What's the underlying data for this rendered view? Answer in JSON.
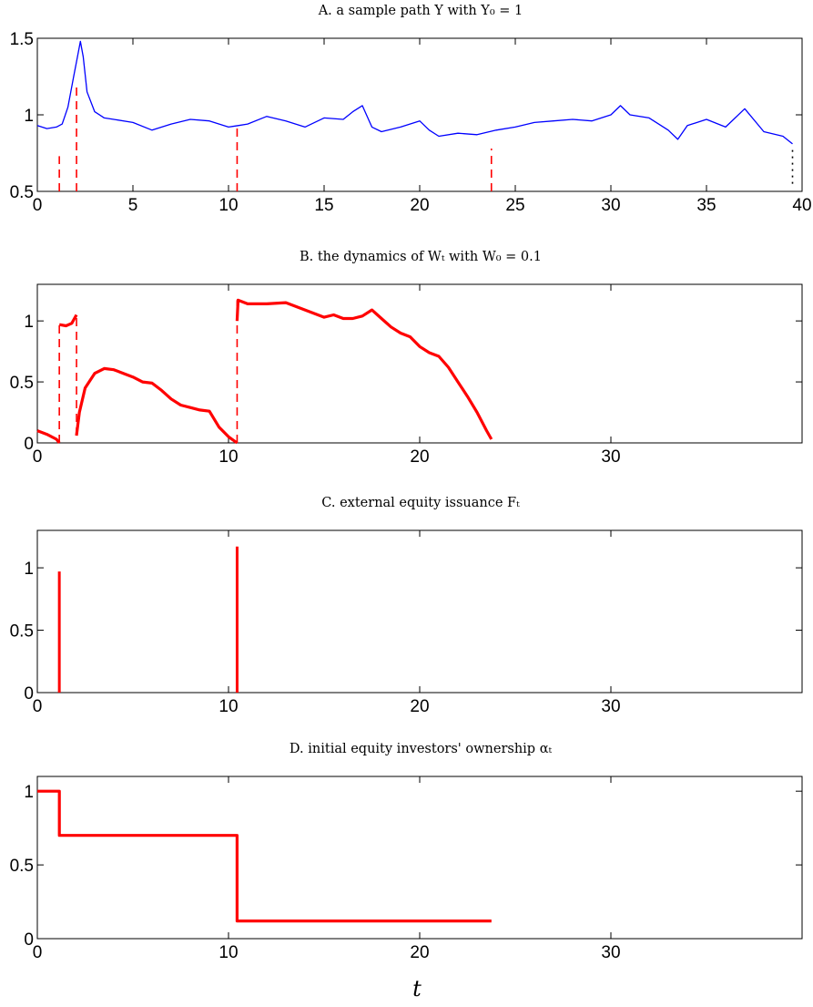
{
  "chart_data": [
    {
      "panel": "A",
      "type": "line",
      "title": "A. a sample path Y with Y₀ = 1",
      "xlim": [
        0,
        40
      ],
      "ylim": [
        0.5,
        1.5
      ],
      "xticks": [
        0,
        5,
        10,
        15,
        20,
        25,
        30,
        35,
        40
      ],
      "yticks": [
        0.5,
        1,
        1.5
      ],
      "xtick_labels": [
        "0",
        "5",
        "10",
        "15",
        "20",
        "25",
        "30",
        "35",
        "40"
      ],
      "ytick_labels": [
        "0.5",
        "1",
        "1.5"
      ],
      "series": [
        {
          "color": "#0000ff",
          "style": "solid",
          "x": [
            0,
            0.5,
            1.0,
            1.3,
            1.6,
            1.9,
            2.1,
            2.25,
            2.4,
            2.6,
            3.0,
            3.5,
            4.0,
            5.0,
            6.0,
            7.0,
            8.0,
            9.0,
            10.0,
            10.5,
            11.0,
            12.0,
            13.0,
            14.0,
            15.0,
            16.0,
            16.5,
            17.0,
            17.5,
            18.0,
            19.0,
            20.0,
            20.5,
            21.0,
            22.0,
            23.0,
            24.0,
            25.0,
            26.0,
            27.0,
            28.0,
            29.0,
            30.0,
            30.5,
            31.0,
            32.0,
            33.0,
            33.5,
            34.0,
            35.0,
            36.0,
            36.5,
            37.0,
            38.0,
            39.0,
            39.5
          ],
          "y": [
            0.93,
            0.91,
            0.92,
            0.94,
            1.05,
            1.25,
            1.38,
            1.48,
            1.38,
            1.15,
            1.02,
            0.98,
            0.97,
            0.95,
            0.9,
            0.94,
            0.97,
            0.96,
            0.92,
            0.93,
            0.94,
            0.99,
            0.96,
            0.92,
            0.98,
            0.97,
            1.02,
            1.06,
            0.92,
            0.89,
            0.92,
            0.96,
            0.9,
            0.86,
            0.88,
            0.87,
            0.9,
            0.92,
            0.95,
            0.96,
            0.97,
            0.96,
            1.0,
            1.06,
            1.0,
            0.98,
            0.9,
            0.84,
            0.93,
            0.97,
            0.92,
            0.98,
            1.04,
            0.89,
            0.86,
            0.81
          ]
        }
      ],
      "vlines": [
        {
          "x": 1.15,
          "y0": 0.5,
          "y1": 0.73,
          "color": "#ff0000",
          "style": "dashed"
        },
        {
          "x": 2.05,
          "y0": 0.5,
          "y1": 1.2,
          "color": "#ff0000",
          "style": "dashed"
        },
        {
          "x": 10.45,
          "y0": 0.5,
          "y1": 0.93,
          "color": "#ff0000",
          "style": "dashed"
        },
        {
          "x": 23.75,
          "y0": 0.5,
          "y1": 0.78,
          "color": "#ff0000",
          "style": "dashed"
        },
        {
          "x": 39.5,
          "y0": 0.55,
          "y1": 0.78,
          "color": "#000000",
          "style": "dotted"
        }
      ]
    },
    {
      "panel": "B",
      "type": "line",
      "title": "B. the dynamics of Wₜ with W₀ = 0.1",
      "xlim": [
        0,
        40
      ],
      "ylim": [
        0,
        1.3
      ],
      "xticks": [
        0,
        10,
        20,
        30
      ],
      "yticks": [
        0,
        0.5,
        1
      ],
      "xtick_labels": [
        "0",
        "10",
        "20",
        "30"
      ],
      "ytick_labels": [
        "0",
        "0.5",
        "1"
      ],
      "series": [
        {
          "color": "#ff0000",
          "style": "solid",
          "x": [
            0,
            0.5,
            1.0,
            1.15
          ],
          "y": [
            0.1,
            0.07,
            0.03,
            0.0
          ]
        },
        {
          "color": "#ff0000",
          "style": "solid",
          "x": [
            1.15,
            1.5,
            1.8,
            2.05
          ],
          "y": [
            0.97,
            0.96,
            0.98,
            1.05
          ]
        },
        {
          "color": "#ff0000",
          "style": "solid",
          "x": [
            2.05,
            2.2,
            2.5,
            3.0,
            3.5,
            4.0,
            4.5,
            5.0,
            5.5,
            6.0,
            6.5,
            7.0,
            7.5,
            8.0,
            8.5,
            9.0,
            9.5,
            10.0,
            10.45
          ],
          "y": [
            0.06,
            0.25,
            0.45,
            0.57,
            0.61,
            0.6,
            0.57,
            0.54,
            0.5,
            0.49,
            0.43,
            0.36,
            0.31,
            0.29,
            0.27,
            0.26,
            0.13,
            0.05,
            0.0
          ]
        },
        {
          "color": "#ff0000",
          "style": "solid",
          "x": [
            10.45,
            10.5,
            11.0,
            12.0,
            13.0,
            14.0,
            15.0,
            15.5,
            16.0,
            16.5,
            17.0,
            17.5,
            18.0,
            18.5,
            19.0,
            19.5,
            20.0,
            20.5,
            21.0,
            21.5,
            22.0,
            22.5,
            23.0,
            23.5,
            23.75
          ],
          "y": [
            1.0,
            1.17,
            1.14,
            1.14,
            1.15,
            1.09,
            1.03,
            1.05,
            1.02,
            1.02,
            1.04,
            1.09,
            1.02,
            0.95,
            0.9,
            0.87,
            0.79,
            0.74,
            0.71,
            0.62,
            0.5,
            0.38,
            0.25,
            0.1,
            0.03
          ]
        }
      ],
      "vlines": [
        {
          "x": 1.15,
          "y0": 0.0,
          "y1": 0.97,
          "color": "#ff0000",
          "style": "dashed"
        },
        {
          "x": 2.05,
          "y0": 0.06,
          "y1": 1.05,
          "color": "#ff0000",
          "style": "dashed"
        },
        {
          "x": 10.45,
          "y0": 0.0,
          "y1": 1.17,
          "color": "#ff0000",
          "style": "dashed"
        }
      ]
    },
    {
      "panel": "C",
      "type": "line",
      "title": "C. external equity issuance Fₜ",
      "xlim": [
        0,
        40
      ],
      "ylim": [
        0,
        1.3
      ],
      "xticks": [
        0,
        10,
        20,
        30
      ],
      "yticks": [
        0,
        0.5,
        1
      ],
      "xtick_labels": [
        "0",
        "10",
        "20",
        "30"
      ],
      "ytick_labels": [
        "0",
        "0.5",
        "1"
      ],
      "series": [],
      "vlines": [
        {
          "x": 1.15,
          "y0": 0.0,
          "y1": 0.97,
          "color": "#ff0000",
          "style": "solid"
        },
        {
          "x": 10.45,
          "y0": 0.0,
          "y1": 1.17,
          "color": "#ff0000",
          "style": "solid"
        }
      ]
    },
    {
      "panel": "D",
      "type": "line",
      "title": "D. initial equity investors' ownership αₜ",
      "xlim": [
        0,
        40
      ],
      "ylim": [
        0,
        1.1
      ],
      "xticks": [
        0,
        10,
        20,
        30
      ],
      "yticks": [
        0,
        0.5,
        1
      ],
      "xtick_labels": [
        "0",
        "10",
        "20",
        "30"
      ],
      "ytick_labels": [
        "0",
        "0.5",
        "1"
      ],
      "xlabel": "t",
      "series": [
        {
          "color": "#ff0000",
          "style": "solid",
          "x": [
            0,
            1.15,
            1.15,
            10.45,
            10.45,
            23.75
          ],
          "y": [
            1.0,
            1.0,
            0.7,
            0.7,
            0.12,
            0.12
          ]
        }
      ],
      "vlines": []
    }
  ]
}
